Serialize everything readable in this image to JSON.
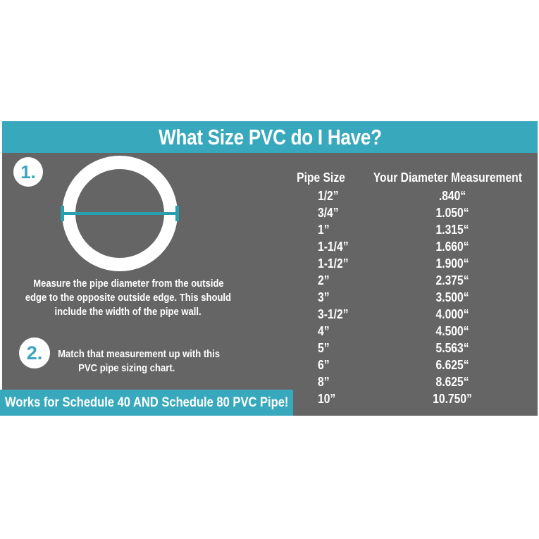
{
  "header": {
    "title": "What Size PVC do I Have?"
  },
  "steps": [
    {
      "number": "1.",
      "lines": [
        "Measure the pipe diameter from the outside",
        "edge to the opposite outside edge. This should",
        "include the width of the pipe wall."
      ]
    },
    {
      "number": "2.",
      "lines": [
        "Match that measurement up with this",
        "PVC pipe sizing chart."
      ]
    }
  ],
  "banner": {
    "text": "Works for Schedule 40 AND Schedule 80 PVC Pipe!"
  },
  "table": {
    "columns": [
      "Pipe Size",
      "Your Diameter Measurement"
    ],
    "rows": [
      [
        "1/2”",
        ".840“"
      ],
      [
        "3/4”",
        "1.050“"
      ],
      [
        "1”",
        "1.315“"
      ],
      [
        "1-1/4”",
        "1.660“"
      ],
      [
        "1-1/2”",
        "1.900“"
      ],
      [
        "2”",
        "2.375“"
      ],
      [
        "3”",
        "3.500“"
      ],
      [
        "3-1/2”",
        "4.000“"
      ],
      [
        "4”",
        "4.500“"
      ],
      [
        "5”",
        "5.563“"
      ],
      [
        "6”",
        "6.625“"
      ],
      [
        "8”",
        "8.625“"
      ],
      [
        "10”",
        "10.750”"
      ]
    ]
  },
  "icons": {
    "pipe_diagram": "pipe-cross-section-icon",
    "measure_line": "diameter-measurement-line"
  },
  "colors": {
    "teal": "#38a9bd",
    "line_teal": "#2b9fae",
    "gray": "#656565",
    "text": "#ffffff"
  }
}
